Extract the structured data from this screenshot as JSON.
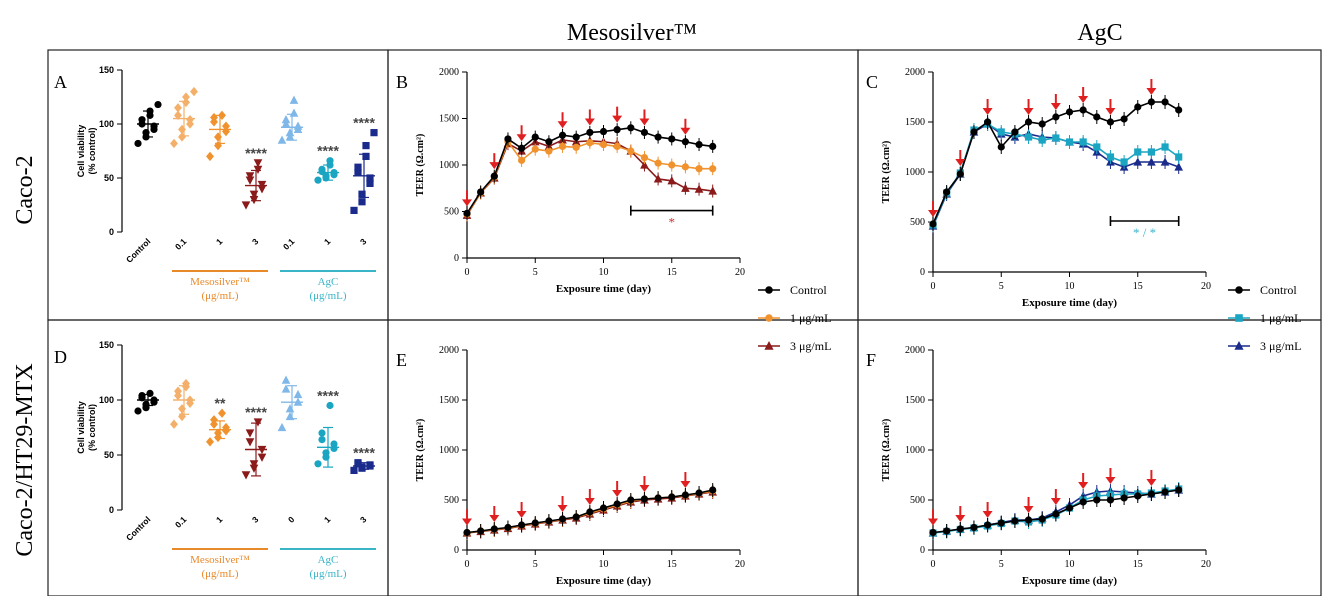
{
  "colors": {
    "control": "#000000",
    "meso": "#f0922d",
    "meso_light": "#f4b06a",
    "meso_dark": "#8b1a1a",
    "agc_light": "#7fb8e8",
    "agc": "#1aa5c2",
    "agc_dark": "#1a2b8c",
    "arrow": "#e02020",
    "mid_orange": "#e8892a",
    "mid_teal": "#3ab5c8",
    "sig_red": "#d02e2e",
    "sig_teal": "#3ab5c8"
  },
  "column_titles": {
    "meso": "Mesosilver™",
    "agc": "AgC"
  },
  "row_labels": {
    "row1": "Caco-2",
    "row2": "Caco-2/HT29-MTX"
  },
  "legends": {
    "meso": {
      "items": [
        "Control",
        "1 μg/mL",
        "3 μg/mL"
      ]
    },
    "agc": {
      "items": [
        "Control",
        "1 μg/mL",
        "3 μg/mL"
      ]
    }
  },
  "chart_data": [
    {
      "id": "A",
      "type": "scatter",
      "ylabel": [
        "Cell viability",
        "(% control)"
      ],
      "yticks": [
        0,
        50,
        100,
        150
      ],
      "ylim": [
        0,
        150
      ],
      "categories": [
        "Control",
        "0.1",
        "1",
        "3",
        "0.1",
        "1",
        "3"
      ],
      "group_labels": [
        {
          "text": [
            "Mesosilver™",
            "(μg/mL)"
          ]
        },
        {
          "text": [
            "AgC",
            "(μg/mL)"
          ]
        }
      ],
      "groups": [
        {
          "mean": 100,
          "sd": 12,
          "points": [
            82,
            88,
            92,
            95,
            98,
            100,
            104,
            108,
            112,
            118
          ],
          "marker": "circle",
          "color": "control",
          "sig": ""
        },
        {
          "mean": 105,
          "sd": 16,
          "points": [
            82,
            88,
            95,
            100,
            104,
            108,
            115,
            120,
            125,
            130
          ],
          "marker": "diamond",
          "color": "meso_light",
          "sig": ""
        },
        {
          "mean": 95,
          "sd": 13,
          "points": [
            70,
            80,
            88,
            93,
            98,
            102,
            106,
            108
          ],
          "marker": "diamond",
          "color": "meso",
          "sig": ""
        },
        {
          "mean": 43,
          "sd": 14,
          "points": [
            25,
            30,
            35,
            40,
            44,
            48,
            52,
            58,
            64
          ],
          "marker": "triangle-down",
          "color": "meso_dark",
          "sig": "****"
        },
        {
          "mean": 97,
          "sd": 12,
          "points": [
            85,
            88,
            92,
            95,
            98,
            100,
            104,
            110,
            122
          ],
          "marker": "triangle-up",
          "color": "agc_light",
          "sig": ""
        },
        {
          "mean": 55,
          "sd": 7,
          "points": [
            48,
            50,
            52,
            53,
            55,
            56,
            58,
            62,
            66
          ],
          "marker": "circle",
          "color": "agc",
          "sig": "****"
        },
        {
          "mean": 52,
          "sd": 20,
          "points": [
            20,
            28,
            35,
            45,
            50,
            55,
            60,
            70,
            80,
            92
          ],
          "marker": "square",
          "color": "agc_dark",
          "sig": "****"
        }
      ]
    },
    {
      "id": "D",
      "type": "scatter",
      "ylabel": [
        "Cell viability",
        "(% control)"
      ],
      "yticks": [
        0,
        50,
        100,
        150
      ],
      "ylim": [
        0,
        150
      ],
      "categories": [
        "Control",
        "0.1",
        "1",
        "3",
        "0",
        "1",
        "3"
      ],
      "group_labels": [
        {
          "text": [
            "Mesosilver™",
            "(μg/mL)"
          ]
        },
        {
          "text": [
            "AgC",
            "(μg/mL)"
          ]
        }
      ],
      "groups": [
        {
          "mean": 100,
          "sd": 5,
          "points": [
            90,
            93,
            96,
            98,
            100,
            102,
            104,
            106
          ],
          "marker": "circle",
          "color": "control",
          "sig": ""
        },
        {
          "mean": 100,
          "sd": 13,
          "points": [
            78,
            85,
            92,
            97,
            100,
            104,
            108,
            112,
            115
          ],
          "marker": "diamond",
          "color": "meso_light",
          "sig": ""
        },
        {
          "mean": 73,
          "sd": 8,
          "points": [
            62,
            66,
            70,
            72,
            75,
            78,
            82,
            88
          ],
          "marker": "diamond",
          "color": "meso",
          "sig": "**"
        },
        {
          "mean": 55,
          "sd": 24,
          "points": [
            32,
            38,
            42,
            48,
            55,
            62,
            70,
            80
          ],
          "marker": "triangle-down",
          "color": "meso_dark",
          "sig": "****"
        },
        {
          "mean": 98,
          "sd": 15,
          "points": [
            75,
            85,
            92,
            98,
            105,
            110,
            118
          ],
          "marker": "triangle-up",
          "color": "agc_light",
          "sig": ""
        },
        {
          "mean": 57,
          "sd": 18,
          "points": [
            42,
            48,
            52,
            56,
            60,
            64,
            70,
            95
          ],
          "marker": "circle",
          "color": "agc",
          "sig": "****"
        },
        {
          "mean": 40,
          "sd": 3,
          "points": [
            36,
            38,
            39,
            40,
            41,
            42,
            43
          ],
          "marker": "square",
          "color": "agc_dark",
          "sig": "****"
        }
      ]
    },
    {
      "id": "B",
      "type": "line",
      "xlabel": "Exposure time (day)",
      "ylabel": "TEER (Ω.cm²)",
      "xlim": [
        0,
        20
      ],
      "ylim": [
        0,
        2000
      ],
      "xticks": [
        0,
        5,
        10,
        15,
        20
      ],
      "yticks": [
        0,
        500,
        1000,
        1500,
        2000
      ],
      "x": [
        0,
        1,
        2,
        3,
        4,
        5,
        6,
        7,
        8,
        9,
        10,
        11,
        12,
        13,
        14,
        15,
        16,
        17,
        18
      ],
      "series": [
        {
          "name": "3 μg/mL",
          "color": "meso_dark",
          "marker": "triangle-up",
          "values": [
            460,
            700,
            860,
            1230,
            1150,
            1250,
            1200,
            1270,
            1250,
            1260,
            1250,
            1230,
            1150,
            1000,
            850,
            830,
            750,
            740,
            720
          ]
        },
        {
          "name": "1 μg/mL",
          "color": "meso",
          "marker": "circle",
          "values": [
            470,
            700,
            870,
            1250,
            1050,
            1170,
            1150,
            1200,
            1190,
            1240,
            1220,
            1200,
            1150,
            1080,
            1020,
            1000,
            980,
            960,
            960
          ]
        },
        {
          "name": "Control",
          "color": "control",
          "marker": "circle",
          "values": [
            480,
            710,
            880,
            1280,
            1180,
            1300,
            1250,
            1320,
            1300,
            1350,
            1360,
            1380,
            1400,
            1350,
            1300,
            1280,
            1250,
            1220,
            1200
          ]
        }
      ],
      "arrows": [
        0,
        2,
        4,
        7,
        9,
        11,
        13,
        16
      ],
      "sig_bar": {
        "from": 12,
        "to": 18,
        "label": "*",
        "color": "sig_red"
      }
    },
    {
      "id": "C",
      "type": "line",
      "xlabel": "Exposure time (day)",
      "ylabel": "TEER (Ω.cm²)",
      "xlim": [
        0,
        20
      ],
      "ylim": [
        0,
        2000
      ],
      "xticks": [
        0,
        5,
        10,
        15,
        20
      ],
      "yticks": [
        0,
        500,
        1000,
        1500,
        2000
      ],
      "x": [
        0,
        1,
        2,
        3,
        4,
        5,
        6,
        7,
        8,
        9,
        10,
        11,
        12,
        13,
        14,
        15,
        16,
        17,
        18
      ],
      "series": [
        {
          "name": "3 μg/mL",
          "color": "agc_dark",
          "marker": "triangle-up",
          "values": [
            460,
            780,
            980,
            1400,
            1480,
            1380,
            1350,
            1380,
            1350,
            1340,
            1300,
            1280,
            1200,
            1100,
            1050,
            1100,
            1100,
            1100,
            1050
          ]
        },
        {
          "name": "1 μg/mL",
          "color": "agc",
          "marker": "square",
          "values": [
            470,
            790,
            990,
            1420,
            1480,
            1400,
            1380,
            1350,
            1320,
            1340,
            1300,
            1300,
            1250,
            1150,
            1100,
            1200,
            1200,
            1250,
            1150
          ]
        },
        {
          "name": "Control",
          "color": "control",
          "marker": "circle",
          "values": [
            480,
            800,
            980,
            1400,
            1500,
            1250,
            1400,
            1500,
            1480,
            1550,
            1600,
            1620,
            1550,
            1500,
            1530,
            1650,
            1700,
            1700,
            1620
          ]
        }
      ],
      "arrows": [
        0,
        2,
        4,
        7,
        9,
        11,
        13,
        16
      ],
      "sig_bar": {
        "from": 13,
        "to": 18,
        "label": "* / *",
        "color": "sig_teal"
      }
    },
    {
      "id": "E",
      "type": "line",
      "xlabel": "Exposure time (day)",
      "ylabel": "TEER (Ω.cm²)",
      "xlim": [
        0,
        20
      ],
      "ylim": [
        0,
        2000
      ],
      "xticks": [
        0,
        5,
        10,
        15,
        20
      ],
      "yticks": [
        0,
        500,
        1000,
        1500,
        2000
      ],
      "x": [
        0,
        1,
        2,
        3,
        4,
        5,
        6,
        7,
        8,
        9,
        10,
        11,
        12,
        13,
        14,
        15,
        16,
        17,
        18
      ],
      "series": [
        {
          "name": "3 μg/mL",
          "color": "meso_dark",
          "marker": "triangle-up",
          "values": [
            170,
            185,
            200,
            215,
            240,
            260,
            280,
            300,
            320,
            360,
            400,
            440,
            480,
            500,
            510,
            520,
            540,
            560,
            580
          ]
        },
        {
          "name": "1 μg/mL",
          "color": "meso",
          "marker": "circle",
          "values": [
            170,
            190,
            205,
            220,
            245,
            265,
            285,
            305,
            330,
            370,
            410,
            450,
            490,
            510,
            520,
            530,
            545,
            565,
            590
          ]
        },
        {
          "name": "Control",
          "color": "control",
          "marker": "circle",
          "values": [
            175,
            190,
            210,
            225,
            250,
            270,
            290,
            310,
            330,
            380,
            420,
            460,
            500,
            510,
            520,
            530,
            550,
            570,
            600
          ]
        }
      ],
      "arrows": [
        0,
        2,
        4,
        7,
        9,
        11,
        13,
        16
      ]
    },
    {
      "id": "F",
      "type": "line",
      "xlabel": "Exposure time (day)",
      "ylabel": "TEER (Ω.cm²)",
      "xlim": [
        0,
        20
      ],
      "ylim": [
        0,
        2000
      ],
      "xticks": [
        0,
        5,
        10,
        15,
        20
      ],
      "yticks": [
        0,
        500,
        1000,
        1500,
        2000
      ],
      "x": [
        0,
        1,
        2,
        3,
        4,
        5,
        6,
        7,
        8,
        9,
        10,
        11,
        12,
        13,
        14,
        15,
        16,
        17,
        18
      ],
      "series": [
        {
          "name": "3 μg/mL",
          "color": "agc_dark",
          "marker": "triangle-up",
          "values": [
            170,
            190,
            210,
            225,
            250,
            275,
            300,
            300,
            320,
            380,
            450,
            540,
            580,
            590,
            580,
            570,
            560,
            580,
            600
          ]
        },
        {
          "name": "1 μg/mL",
          "color": "agc",
          "marker": "square",
          "values": [
            170,
            185,
            205,
            220,
            240,
            265,
            290,
            280,
            300,
            350,
            420,
            500,
            540,
            550,
            560,
            560,
            570,
            590,
            610
          ]
        },
        {
          "name": "Control",
          "color": "control",
          "marker": "circle",
          "values": [
            175,
            190,
            210,
            225,
            250,
            270,
            290,
            300,
            310,
            360,
            420,
            480,
            500,
            500,
            520,
            540,
            560,
            580,
            600
          ]
        }
      ],
      "arrows": [
        0,
        2,
        4,
        7,
        9,
        11,
        13,
        16
      ]
    }
  ]
}
